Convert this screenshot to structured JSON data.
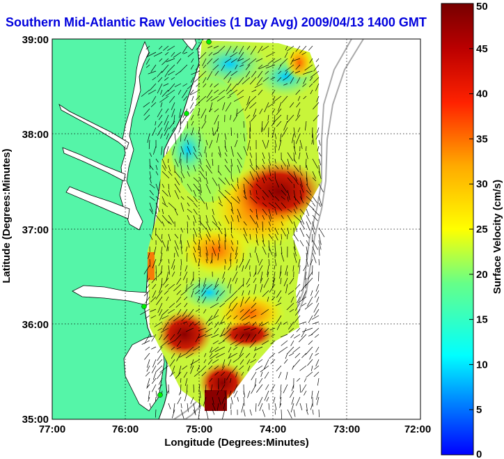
{
  "title": "Southern Mid-Atlantic Raw Velocities (1 Day Avg) 2009/04/13 1400 GMT",
  "chart_data": {
    "type": "heatmap",
    "map_type": "ocean surface current velocity map",
    "xlabel": "Longitude (Degrees:Minutes)",
    "ylabel": "Latitude (Degrees:Minutes)",
    "x_ticks": [
      "77:00",
      "76:00",
      "75:00",
      "74:00",
      "73:00",
      "72:00"
    ],
    "y_ticks": [
      "39:00",
      "38:00",
      "37:00",
      "36:00",
      "35:00"
    ],
    "colorbar": {
      "label": "Surface Velocity (cm/s)",
      "ticks": [
        "50",
        "45",
        "40",
        "35",
        "30",
        "25",
        "20",
        "15",
        "10",
        "5",
        "0"
      ],
      "range": [
        0,
        50
      ],
      "colors": [
        "#0000ff",
        "#00aaff",
        "#00ffff",
        "#66ff88",
        "#ffff00",
        "#ffaa00",
        "#ff2200",
        "#aa0000",
        "#660000"
      ]
    },
    "grid": true,
    "colors": {
      "land": "#55f5a8",
      "water": "#ffffff",
      "coastline": "#000000",
      "shelf_isobath": "#aaaaaa",
      "radar_site": "#00ee00",
      "vectors": "#000000"
    }
  }
}
